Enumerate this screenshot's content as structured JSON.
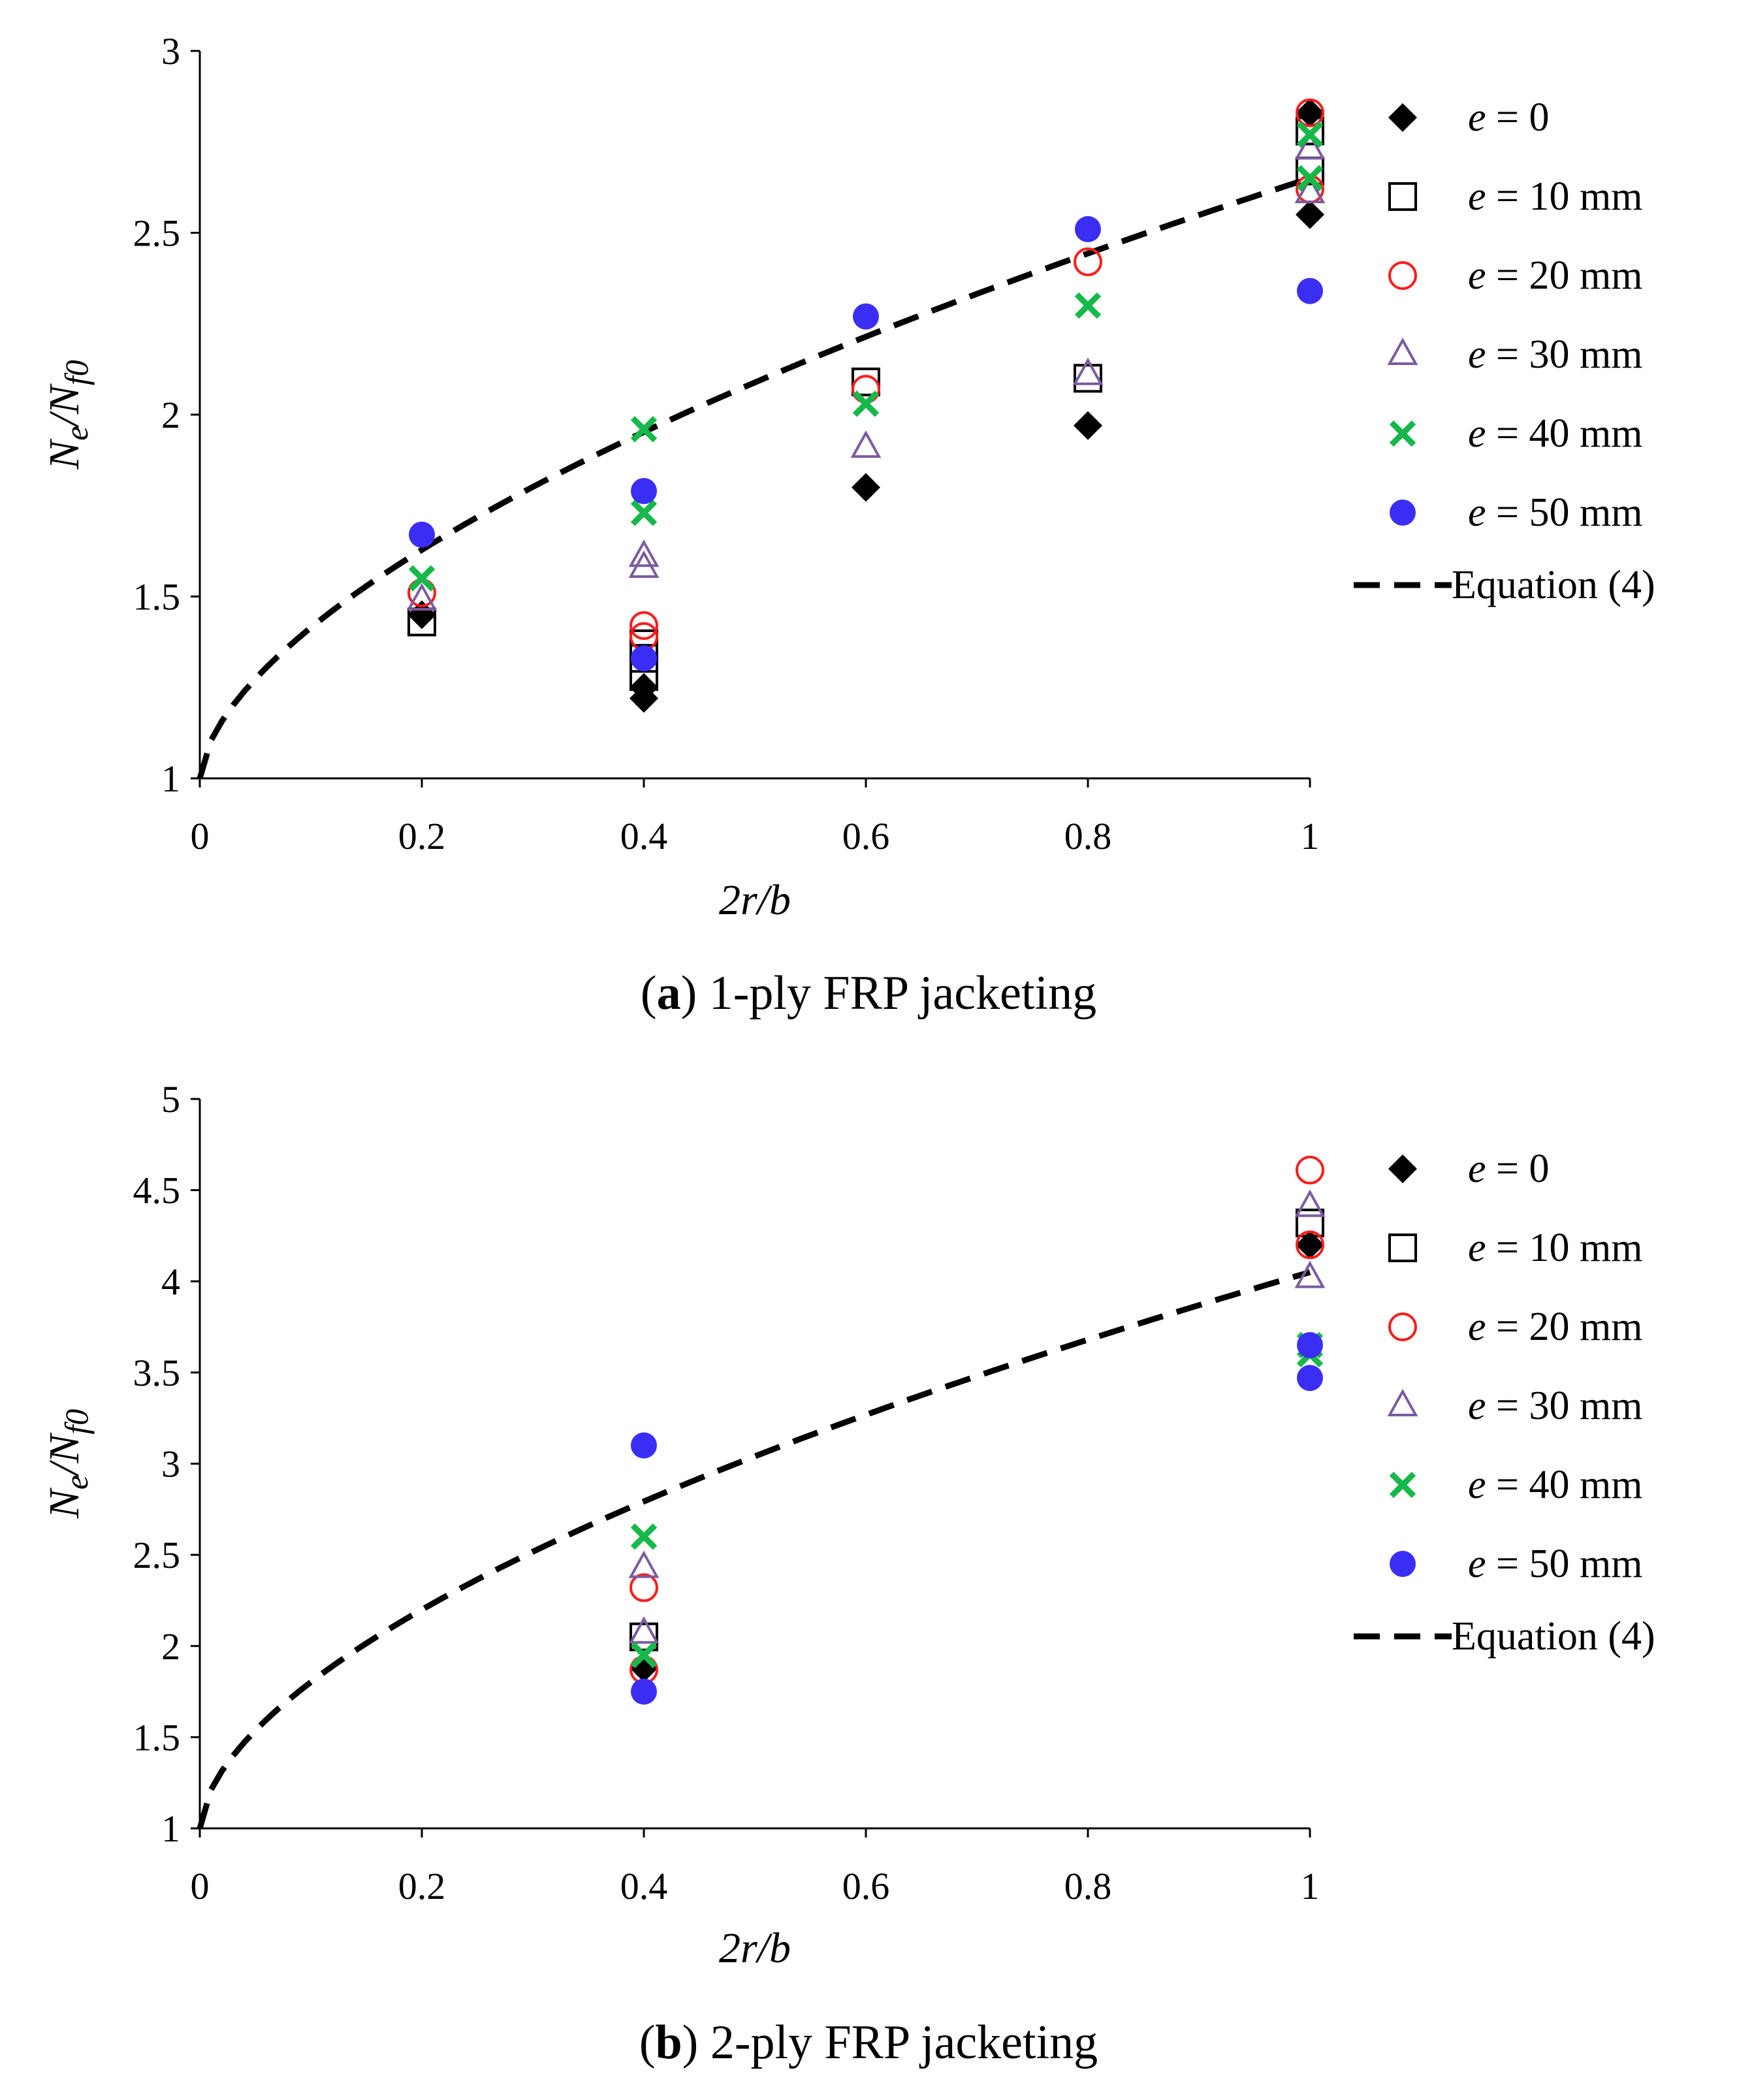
{
  "chart_data": [
    {
      "type": "scatter",
      "title": "",
      "caption_letter": "a",
      "caption_text": "1-ply FRP jacketing",
      "xlabel": "2r/b",
      "ylabel_main": "N",
      "ylabel_sub1": "e",
      "ylabel_slash": "/",
      "ylabel_main2": "N",
      "ylabel_sub2": "f0",
      "xlim": [
        0,
        1
      ],
      "ylim": [
        1,
        3
      ],
      "xticks": [
        "0",
        "0.2",
        "0.4",
        "0.6",
        "0.8",
        "1"
      ],
      "xtick_values": [
        0,
        0.2,
        0.4,
        0.6,
        0.8,
        1
      ],
      "yticks": [
        "1",
        "1.5",
        "2",
        "2.5",
        "3"
      ],
      "ytick_values": [
        1,
        1.5,
        2,
        2.5,
        3
      ],
      "legend_position": "right",
      "series": [
        {
          "name_italic": "e",
          "name_rest": " = 0",
          "marker": "diamond",
          "color": "#000000",
          "points": [
            [
              0.2,
              1.45
            ],
            [
              0.4,
              1.25
            ],
            [
              0.4,
              1.22
            ],
            [
              0.6,
              1.8
            ],
            [
              0.8,
              1.97
            ],
            [
              1.0,
              2.83
            ],
            [
              1.0,
              2.55
            ]
          ]
        },
        {
          "name_italic": "e",
          "name_rest": " = 10 mm",
          "marker": "square",
          "color": "#000000",
          "points": [
            [
              0.2,
              1.43
            ],
            [
              0.4,
              1.37
            ],
            [
              0.4,
              1.33
            ],
            [
              0.4,
              1.28
            ],
            [
              0.6,
              2.09
            ],
            [
              0.8,
              2.1
            ],
            [
              1.0,
              2.78
            ],
            [
              1.0,
              2.67
            ]
          ]
        },
        {
          "name_italic": "e",
          "name_rest": " = 20 mm",
          "marker": "circle-open",
          "color": "#ff1a1a",
          "points": [
            [
              0.2,
              1.51
            ],
            [
              0.4,
              1.42
            ],
            [
              0.4,
              1.39
            ],
            [
              0.6,
              2.07
            ],
            [
              0.8,
              2.42
            ],
            [
              1.0,
              2.83
            ],
            [
              1.0,
              2.62
            ]
          ]
        },
        {
          "name_italic": "e",
          "name_rest": " = 30 mm",
          "marker": "triangle",
          "color": "#7a5c9e",
          "points": [
            [
              0.2,
              1.49
            ],
            [
              0.4,
              1.61
            ],
            [
              0.4,
              1.58
            ],
            [
              0.6,
              1.91
            ],
            [
              0.8,
              2.11
            ],
            [
              1.0,
              2.73
            ],
            [
              1.0,
              2.61
            ]
          ]
        },
        {
          "name_italic": "e",
          "name_rest": " = 40 mm",
          "marker": "x",
          "color": "#16b84a",
          "points": [
            [
              0.2,
              1.55
            ],
            [
              0.4,
              1.96
            ],
            [
              0.4,
              1.73
            ],
            [
              0.6,
              2.03
            ],
            [
              0.8,
              2.3
            ],
            [
              1.0,
              2.77
            ],
            [
              1.0,
              2.65
            ]
          ]
        },
        {
          "name_italic": "e",
          "name_rest": " = 50 mm",
          "marker": "circle-filled",
          "color": "#3a2ef5",
          "points": [
            [
              0.2,
              1.67
            ],
            [
              0.4,
              1.79
            ],
            [
              0.4,
              1.33
            ],
            [
              0.6,
              2.27
            ],
            [
              0.8,
              2.51
            ],
            [
              1.0,
              2.34
            ]
          ]
        }
      ],
      "equation": {
        "label": "Equation (4)",
        "coef": 1.65,
        "exponent": 0.6
      }
    },
    {
      "type": "scatter",
      "title": "",
      "caption_letter": "b",
      "caption_text": "2-ply FRP jacketing",
      "xlabel": "2r/b",
      "ylabel_main": "N",
      "ylabel_sub1": "e",
      "ylabel_slash": "/",
      "ylabel_main2": "N",
      "ylabel_sub2": "f0",
      "xlim": [
        0,
        1
      ],
      "ylim": [
        1,
        5
      ],
      "xticks": [
        "0",
        "0.2",
        "0.4",
        "0.6",
        "0.8",
        "1"
      ],
      "xtick_values": [
        0,
        0.2,
        0.4,
        0.6,
        0.8,
        1
      ],
      "yticks": [
        "1",
        "1.5",
        "2",
        "2.5",
        "3",
        "3.5",
        "4",
        "4.5",
        "5"
      ],
      "ytick_values": [
        1,
        1.5,
        2,
        2.5,
        3,
        3.5,
        4,
        4.5,
        5
      ],
      "legend_position": "right",
      "series": [
        {
          "name_italic": "e",
          "name_rest": " = 0",
          "marker": "diamond",
          "color": "#000000",
          "points": [
            [
              0.4,
              1.88
            ],
            [
              1.0,
              4.2
            ]
          ]
        },
        {
          "name_italic": "e",
          "name_rest": " = 10 mm",
          "marker": "square",
          "color": "#000000",
          "points": [
            [
              0.4,
              2.05
            ],
            [
              1.0,
              4.32
            ]
          ]
        },
        {
          "name_italic": "e",
          "name_rest": " = 20 mm",
          "marker": "circle-open",
          "color": "#ff1a1a",
          "points": [
            [
              0.4,
              2.32
            ],
            [
              0.4,
              1.87
            ],
            [
              1.0,
              4.61
            ],
            [
              1.0,
              4.2
            ]
          ]
        },
        {
          "name_italic": "e",
          "name_rest": " = 30 mm",
          "marker": "triangle",
          "color": "#7a5c9e",
          "points": [
            [
              0.4,
              2.43
            ],
            [
              0.4,
              2.07
            ],
            [
              1.0,
              4.41
            ],
            [
              1.0,
              4.02
            ]
          ]
        },
        {
          "name_italic": "e",
          "name_rest": " = 40 mm",
          "marker": "x",
          "color": "#16b84a",
          "points": [
            [
              0.4,
              2.6
            ],
            [
              0.4,
              1.95
            ],
            [
              1.0,
              3.65
            ],
            [
              1.0,
              3.6
            ]
          ]
        },
        {
          "name_italic": "e",
          "name_rest": " = 50 mm",
          "marker": "circle-filled",
          "color": "#3a2ef5",
          "points": [
            [
              0.4,
              3.1
            ],
            [
              0.4,
              1.75
            ],
            [
              1.0,
              3.65
            ],
            [
              1.0,
              3.47
            ]
          ]
        }
      ],
      "equation": {
        "label": "Equation (4)",
        "coef": 3.05,
        "exponent": 0.58
      }
    }
  ]
}
